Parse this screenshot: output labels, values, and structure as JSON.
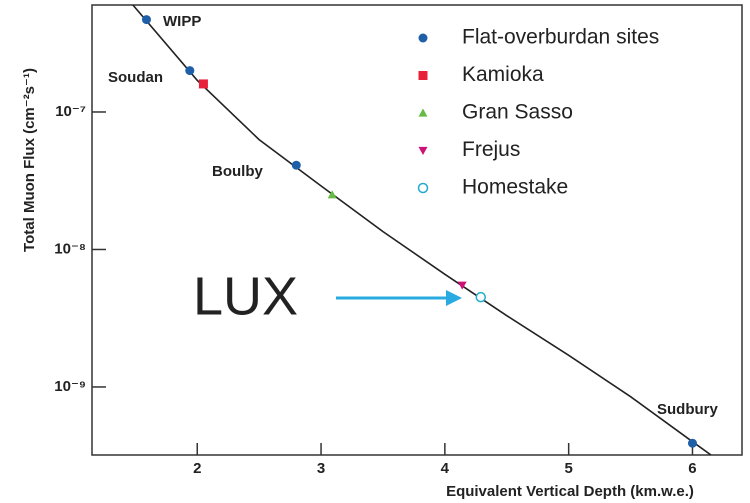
{
  "chart_data": {
    "type": "scatter",
    "xlabel": "Equivalent Vertical Depth (km.w.e.)",
    "ylabel": "Total Muon Flux (cm⁻²s⁻¹)",
    "xlim": [
      1.15,
      6.4
    ],
    "xticks": [
      2,
      3,
      4,
      5,
      6
    ],
    "ylim": [
      3.2e-10,
      6e-07
    ],
    "yscale": "log",
    "yticks": [
      {
        "value": 1e-07,
        "label": "10⁻⁷"
      },
      {
        "value": 1e-08,
        "label": "10⁻⁸"
      },
      {
        "value": 1e-09,
        "label": "10⁻⁹"
      }
    ],
    "legend": "upper right",
    "series": [
      {
        "name": "Flat-overburdan sites",
        "color": "#1f5fa8",
        "marker": "circle",
        "x": [
          1.59,
          1.94,
          2.8,
          6.0
        ],
        "values": [
          4.7e-07,
          2e-07,
          4.1e-08,
          3.9e-10
        ]
      },
      {
        "name": "Kamioka",
        "color": "#e8203a",
        "marker": "square",
        "x": [
          2.05
        ],
        "values": [
          1.6e-07
        ]
      },
      {
        "name": "Gran Sasso",
        "color": "#66bb44",
        "marker": "triangle-up",
        "x": [
          3.09
        ],
        "values": [
          2.5e-08
        ]
      },
      {
        "name": "Frejus",
        "color": "#cc1177",
        "marker": "triangle-down",
        "x": [
          4.14
        ],
        "values": [
          5.5e-09
        ]
      },
      {
        "name": "Homestake",
        "color": "#22aacc",
        "marker": "open-circle",
        "x": [
          4.29
        ],
        "values": [
          4.5e-09
        ]
      }
    ],
    "fit": {
      "color": "#222222",
      "x": [
        1.48,
        2,
        2.5,
        3,
        3.5,
        4,
        4.5,
        5,
        5.5,
        6,
        6.15
      ],
      "values": [
        6e-07,
        1.7e-07,
        6.3e-08,
        2.9e-08,
        1.35e-08,
        6.6e-09,
        3.3e-09,
        1.7e-09,
        8.5e-10,
        4e-10,
        3.2e-10
      ]
    },
    "annotations": [
      "WIPP",
      "Soudan",
      "Boulby",
      "Sudbury",
      "LUX"
    ],
    "arrow_color": "#29abe2"
  }
}
